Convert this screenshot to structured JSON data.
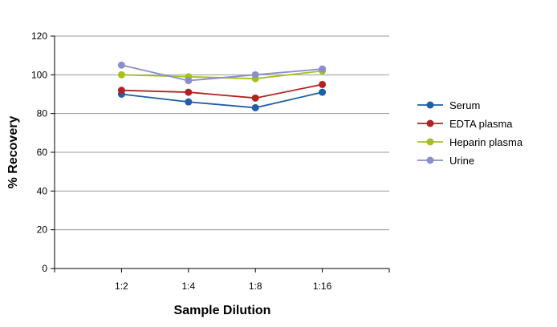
{
  "chart_data": {
    "type": "line",
    "title": "",
    "xlabel": "Sample Dilution",
    "ylabel": "% Recovery",
    "categories": [
      "1:2",
      "1:4",
      "1:8",
      "1:16"
    ],
    "ylim": [
      0,
      120
    ],
    "yticks": [
      0,
      20,
      40,
      60,
      80,
      100,
      120
    ],
    "grid": "horizontal",
    "legend_position": "right",
    "series": [
      {
        "name": "Serum",
        "color": "#1f5ea8",
        "values": [
          90,
          86,
          83,
          91
        ]
      },
      {
        "name": "EDTA plasma",
        "color": "#b22222",
        "values": [
          92,
          91,
          88,
          95
        ]
      },
      {
        "name": "Heparin plasma",
        "color": "#a4c21a",
        "values": [
          100,
          99,
          98,
          102
        ]
      },
      {
        "name": "Urine",
        "color": "#8a8ed0",
        "values": [
          105,
          97,
          100,
          103
        ]
      }
    ]
  }
}
